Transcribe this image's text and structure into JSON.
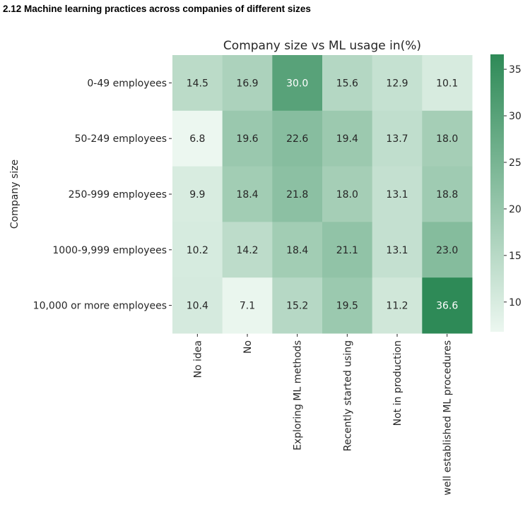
{
  "page": {
    "heading": "2.12 Machine learning practices across companies of different sizes"
  },
  "chart_data": {
    "type": "heatmap",
    "title": "Company size vs ML usage in(%)",
    "xlabel": "",
    "ylabel": "Company size",
    "rows": [
      "0-49 employees",
      "50-249 employees",
      "250-999 employees",
      "1000-9,999 employees",
      "10,000 or more employees"
    ],
    "columns": [
      "No idea",
      "No",
      "Exploring ML methods",
      "Recently started using",
      "Not in production",
      "well established ML procedures"
    ],
    "values": [
      [
        14.5,
        16.9,
        30.0,
        15.6,
        12.9,
        10.1
      ],
      [
        6.8,
        19.6,
        22.6,
        19.4,
        13.7,
        18.0
      ],
      [
        9.9,
        18.4,
        21.8,
        18.0,
        13.1,
        18.8
      ],
      [
        10.2,
        14.2,
        18.4,
        21.1,
        13.1,
        23.0
      ],
      [
        10.4,
        7.1,
        15.2,
        19.5,
        11.2,
        36.6
      ]
    ],
    "value_format": "0.1f",
    "colormap": {
      "low": "#ecf7f0",
      "high": "#2e8a57"
    },
    "colorbar": {
      "range": [
        6.8,
        36.6
      ],
      "ticks": [
        10,
        15,
        20,
        25,
        30,
        35
      ]
    },
    "annotation_colors": {
      "dark": "#262626",
      "light": "#ffffff"
    }
  }
}
